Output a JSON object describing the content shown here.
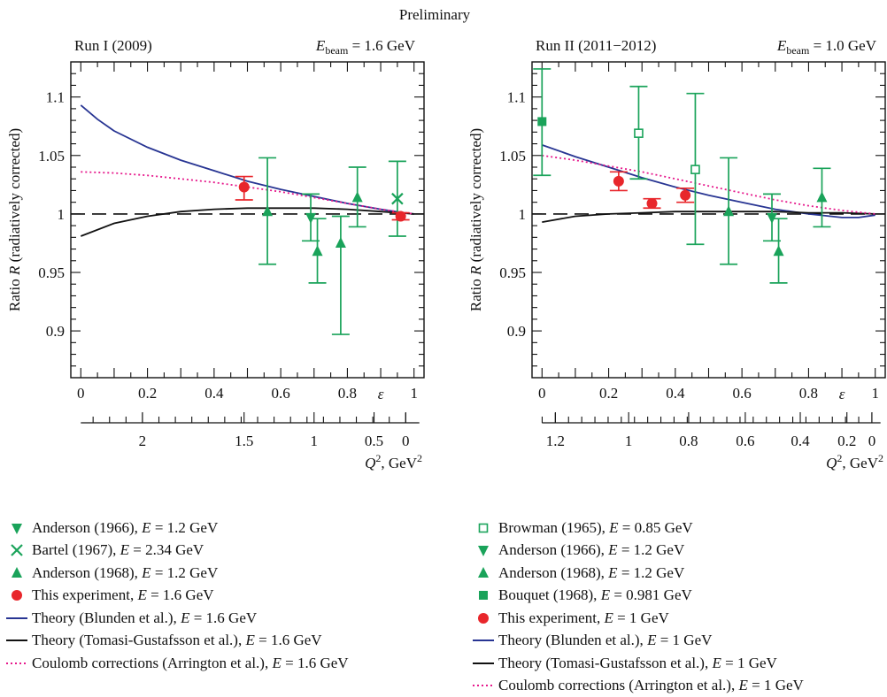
{
  "figure_title": "Preliminary",
  "colors": {
    "green": "#1aa35a",
    "red": "#e8262b",
    "blunden": "#283593",
    "tomasi": "#111111",
    "arrington": "#e6198c"
  },
  "chart_data": [
    {
      "type": "scatter",
      "panel_title": "Run I (2009)",
      "beam_label": "E",
      "beam_subscript": "beam",
      "beam_value": "= 1.6 GeV",
      "xlabel": "ε",
      "ylabel": "Ratio R (radiatively corrected)",
      "xlim": [
        -0.03,
        1.03
      ],
      "ylim": [
        0.86,
        1.13
      ],
      "x_ticks": [
        "0",
        "0.2",
        "0.4",
        "0.6",
        "0.8",
        "1"
      ],
      "y_ticks": [
        "0.9",
        "0.95",
        "1",
        "1.05",
        "1.1"
      ],
      "y_tick_values": [
        0.9,
        0.95,
        1.0,
        1.05,
        1.1
      ],
      "q2_label": "Q",
      "q2_unit": ", GeV",
      "q2_ticks": [
        {
          "label": "2",
          "eps": 0.185
        },
        {
          "label": "1.5",
          "eps": 0.49
        },
        {
          "label": "1",
          "eps": 0.7
        },
        {
          "label": "0.5",
          "eps": 0.88
        },
        {
          "label": "0",
          "eps": 0.975
        }
      ],
      "series": [
        {
          "name": "Anderson (1966), E = 1.2 GeV",
          "marker": "tri-down",
          "color": "green",
          "points": [
            {
              "x": 0.69,
              "y": 0.997,
              "lo": 0.977,
              "hi": 1.017
            }
          ]
        },
        {
          "name": "Bartel (1967), E = 2.34 GeV",
          "marker": "x",
          "color": "green",
          "points": [
            {
              "x": 0.95,
              "y": 1.013,
              "lo": 0.981,
              "hi": 1.045
            }
          ]
        },
        {
          "name": "Anderson (1968), E = 1.2 GeV",
          "marker": "tri-up",
          "color": "green",
          "points": [
            {
              "x": 0.56,
              "y": 1.002,
              "lo": 0.957,
              "hi": 1.048
            },
            {
              "x": 0.71,
              "y": 0.968,
              "lo": 0.941,
              "hi": 0.996
            },
            {
              "x": 0.83,
              "y": 1.014,
              "lo": 0.989,
              "hi": 1.04
            },
            {
              "x": 0.78,
              "y": 0.975,
              "lo": 0.897,
              "hi": 0.998
            }
          ]
        },
        {
          "name": "This experiment, E = 1.6 GeV",
          "marker": "circle",
          "color": "red",
          "points": [
            {
              "x": 0.49,
              "y": 1.023,
              "lo": 1.012,
              "hi": 1.032
            },
            {
              "x": 0.96,
              "y": 0.998,
              "lo": 0.995,
              "hi": 1.001
            }
          ]
        }
      ],
      "curves": [
        {
          "name": "Theory (Blunden et al.), E = 1.6 GeV",
          "color": "blunden",
          "style": "solid",
          "x": [
            0,
            0.05,
            0.1,
            0.2,
            0.3,
            0.4,
            0.5,
            0.6,
            0.7,
            0.8,
            0.9,
            0.97,
            1.0
          ],
          "y": [
            1.093,
            1.081,
            1.071,
            1.057,
            1.046,
            1.037,
            1.028,
            1.021,
            1.015,
            1.009,
            1.004,
            1.001,
            1.0
          ]
        },
        {
          "name": "Theory (Tomasi-Gustafsson et al.), E = 1.6 GeV",
          "color": "tomasi",
          "style": "solid",
          "x": [
            0,
            0.1,
            0.2,
            0.3,
            0.4,
            0.5,
            0.6,
            0.7,
            0.8,
            0.9,
            1.0
          ],
          "y": [
            0.981,
            0.992,
            0.998,
            1.002,
            1.004,
            1.005,
            1.005,
            1.005,
            1.004,
            1.002,
            1.0
          ]
        },
        {
          "name": "Coulomb corrections (Arrington et al.), E = 1.6 GeV",
          "color": "arrington",
          "style": "dotted",
          "x": [
            0,
            0.1,
            0.2,
            0.3,
            0.4,
            0.5,
            0.6,
            0.7,
            0.8,
            0.9,
            1.0
          ],
          "y": [
            1.036,
            1.035,
            1.033,
            1.03,
            1.027,
            1.023,
            1.019,
            1.014,
            1.009,
            1.004,
            1.0
          ]
        }
      ],
      "reference_line": 1.0
    },
    {
      "type": "scatter",
      "panel_title": "Run II (2011−2012)",
      "beam_label": "E",
      "beam_subscript": "beam",
      "beam_value": "= 1.0 GeV",
      "xlabel": "ε",
      "ylabel": "Ratio R (radiatively corrected)",
      "xlim": [
        -0.03,
        1.03
      ],
      "ylim": [
        0.86,
        1.13
      ],
      "x_ticks": [
        "0",
        "0.2",
        "0.4",
        "0.6",
        "0.8",
        "1"
      ],
      "y_ticks": [
        "0.9",
        "0.95",
        "1",
        "1.05",
        "1.1"
      ],
      "y_tick_values": [
        0.9,
        0.95,
        1.0,
        1.05,
        1.1
      ],
      "q2_label": "Q",
      "q2_unit": ", GeV",
      "q2_ticks": [
        {
          "label": "1.2",
          "eps": 0.04
        },
        {
          "label": "1",
          "eps": 0.26
        },
        {
          "label": "0.8",
          "eps": 0.44
        },
        {
          "label": "0.6",
          "eps": 0.61
        },
        {
          "label": "0.4",
          "eps": 0.775
        },
        {
          "label": "0.2",
          "eps": 0.915
        },
        {
          "label": "0",
          "eps": 0.99
        }
      ],
      "series": [
        {
          "name": "Browman (1965), E = 0.85 GeV",
          "marker": "square-open",
          "color": "green",
          "points": [
            {
              "x": 0.29,
              "y": 1.069,
              "lo": 1.03,
              "hi": 1.109
            },
            {
              "x": 0.46,
              "y": 1.038,
              "lo": 0.974,
              "hi": 1.103
            }
          ]
        },
        {
          "name": "Anderson (1966), E = 1.2 GeV",
          "marker": "tri-down",
          "color": "green",
          "points": [
            {
              "x": 0.69,
              "y": 0.997,
              "lo": 0.977,
              "hi": 1.017
            }
          ]
        },
        {
          "name": "Anderson (1968), E = 1.2 GeV",
          "marker": "tri-up",
          "color": "green",
          "points": [
            {
              "x": 0.56,
              "y": 1.002,
              "lo": 0.957,
              "hi": 1.048
            },
            {
              "x": 0.71,
              "y": 0.968,
              "lo": 0.941,
              "hi": 0.996
            },
            {
              "x": 0.84,
              "y": 1.014,
              "lo": 0.989,
              "hi": 1.039
            }
          ]
        },
        {
          "name": "Bouquet (1968), E = 0.981 GeV",
          "marker": "square",
          "color": "green",
          "points": [
            {
              "x": 0.0,
              "y": 1.079,
              "lo": 1.033,
              "hi": 1.124
            }
          ]
        },
        {
          "name": "This experiment, E = 1 GeV",
          "marker": "circle",
          "color": "red",
          "points": [
            {
              "x": 0.23,
              "y": 1.028,
              "lo": 1.02,
              "hi": 1.036
            },
            {
              "x": 0.33,
              "y": 1.009,
              "lo": 1.005,
              "hi": 1.013
            },
            {
              "x": 0.43,
              "y": 1.016,
              "lo": 1.01,
              "hi": 1.022
            }
          ]
        }
      ],
      "curves": [
        {
          "name": "Theory (Blunden et al.), E = 1 GeV",
          "color": "blunden",
          "style": "solid",
          "x": [
            0,
            0.1,
            0.2,
            0.3,
            0.4,
            0.5,
            0.6,
            0.7,
            0.8,
            0.9,
            0.95,
            1.0
          ],
          "y": [
            1.059,
            1.049,
            1.04,
            1.031,
            1.023,
            1.016,
            1.01,
            1.004,
            1.0,
            0.997,
            0.997,
            0.999
          ]
        },
        {
          "name": "Theory (Tomasi-Gustafsson et al.), E = 1 GeV",
          "color": "tomasi",
          "style": "solid",
          "x": [
            0,
            0.1,
            0.2,
            0.3,
            0.4,
            0.5,
            0.6,
            0.7,
            0.8,
            0.9,
            1.0
          ],
          "y": [
            0.993,
            0.998,
            1.0,
            1.001,
            1.002,
            1.002,
            1.002,
            1.002,
            1.001,
            1.001,
            1.0
          ]
        },
        {
          "name": "Coulomb corrections (Arrington et al.), E = 1 GeV",
          "color": "arrington",
          "style": "dotted",
          "x": [
            0,
            0.1,
            0.2,
            0.3,
            0.4,
            0.5,
            0.6,
            0.7,
            0.8,
            0.9,
            1.0
          ],
          "y": [
            1.05,
            1.046,
            1.041,
            1.036,
            1.03,
            1.024,
            1.018,
            1.012,
            1.007,
            1.003,
            1.0
          ]
        }
      ],
      "reference_line": 1.0
    }
  ],
  "legend": {
    "left": [
      {
        "marker": "tri-down",
        "color": "green",
        "text": "Anderson (1966), E = 1.2 GeV"
      },
      {
        "marker": "x",
        "color": "green",
        "text": "Bartel (1967), E = 2.34 GeV"
      },
      {
        "marker": "tri-up",
        "color": "green",
        "text": "Anderson (1968), E = 1.2 GeV"
      },
      {
        "marker": "circle",
        "color": "red",
        "text": "This experiment, E = 1.6 GeV"
      },
      {
        "marker": "line",
        "color": "blunden",
        "text": "Theory (Blunden et al.), E = 1.6 GeV"
      },
      {
        "marker": "line",
        "color": "tomasi",
        "text": "Theory (Tomasi-Gustafsson et al.), E = 1.6 GeV"
      },
      {
        "marker": "dotted",
        "color": "arrington",
        "text": "Coulomb corrections (Arrington et al.), E = 1.6 GeV"
      }
    ],
    "right": [
      {
        "marker": "square-open",
        "color": "green",
        "text": "Browman (1965), E = 0.85 GeV"
      },
      {
        "marker": "tri-down",
        "color": "green",
        "text": "Anderson (1966), E = 1.2 GeV"
      },
      {
        "marker": "tri-up",
        "color": "green",
        "text": "Anderson (1968), E = 1.2 GeV"
      },
      {
        "marker": "square",
        "color": "green",
        "text": "Bouquet (1968), E = 0.981 GeV"
      },
      {
        "marker": "circle",
        "color": "red",
        "text": "This experiment, E = 1 GeV"
      },
      {
        "marker": "line",
        "color": "blunden",
        "text": "Theory (Blunden et al.), E = 1 GeV"
      },
      {
        "marker": "line",
        "color": "tomasi",
        "text": "Theory (Tomasi-Gustafsson et al.), E = 1 GeV"
      },
      {
        "marker": "dotted",
        "color": "arrington",
        "text": "Coulomb corrections (Arrington et al.), E = 1 GeV"
      }
    ]
  }
}
